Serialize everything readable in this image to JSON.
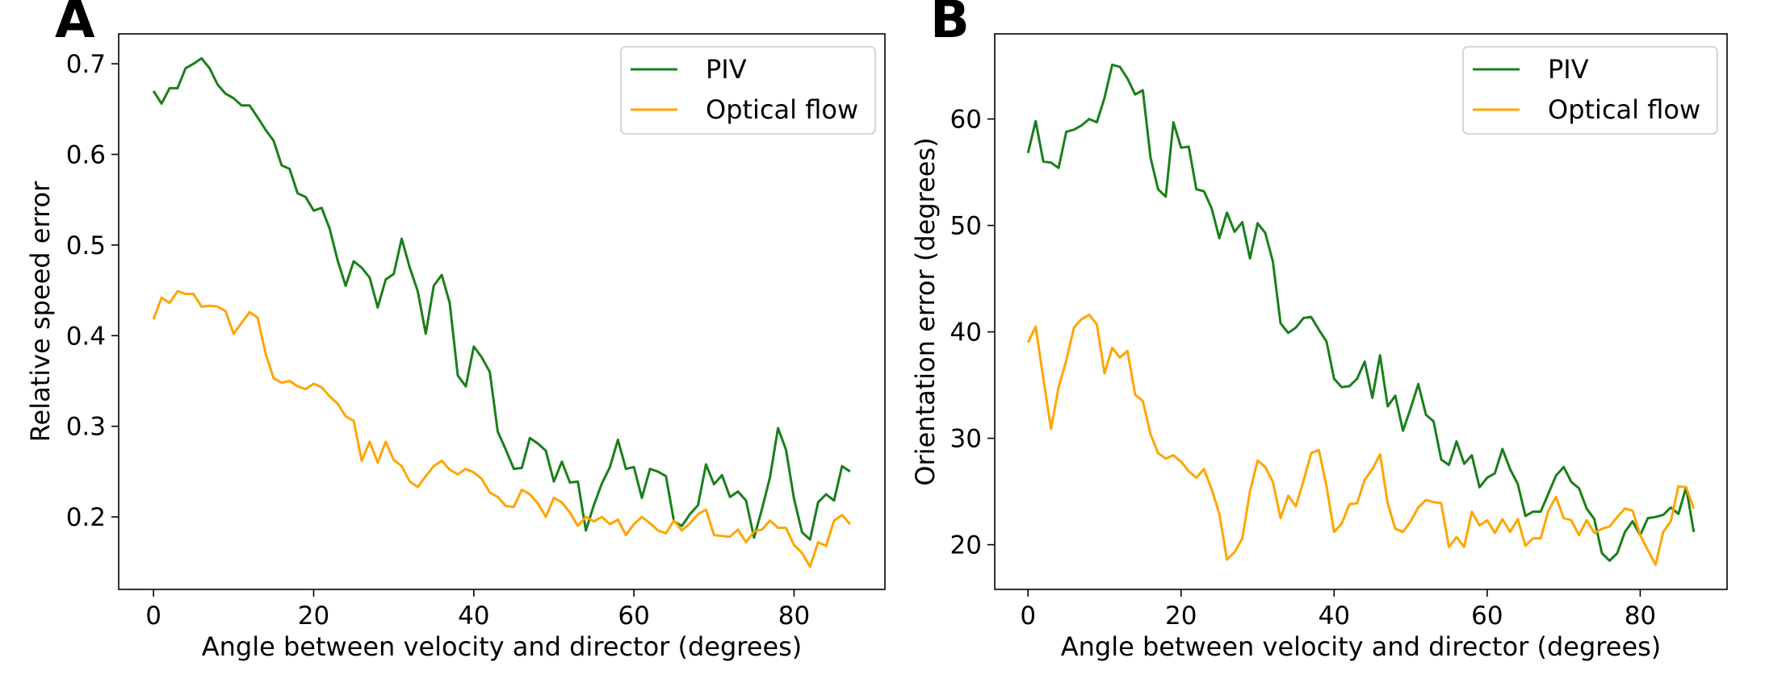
{
  "colors": {
    "piv": "#1a7f1a",
    "optical_flow": "#ffa500",
    "axes": "#000000",
    "legend_border": "#cccccc"
  },
  "chart_data": [
    {
      "type": "line",
      "panel": "A",
      "xlabel": "Angle between velocity and director (degrees)",
      "ylabel": "Relative speed error",
      "xlim": [
        -4.35,
        91.35
      ],
      "ylim": [
        0.12,
        0.733
      ],
      "xticks": [
        0,
        20,
        40,
        60,
        80
      ],
      "yticks": [
        0.2,
        0.3,
        0.4,
        0.5,
        0.6,
        0.7
      ],
      "ytick_labels": [
        "0.2",
        "0.3",
        "0.4",
        "0.5",
        "0.6",
        "0.7"
      ],
      "legend_location": "top-right",
      "x": [
        0,
        1,
        2,
        3,
        4,
        5,
        6,
        7,
        8,
        9,
        10,
        11,
        12,
        13,
        14,
        15,
        16,
        17,
        18,
        19,
        20,
        21,
        22,
        23,
        24,
        25,
        26,
        27,
        28,
        29,
        30,
        31,
        32,
        33,
        34,
        35,
        36,
        37,
        38,
        39,
        40,
        41,
        42,
        43,
        44,
        45,
        46,
        47,
        48,
        49,
        50,
        51,
        52,
        53,
        54,
        55,
        56,
        57,
        58,
        59,
        60,
        61,
        62,
        63,
        64,
        65,
        66,
        67,
        68,
        69,
        70,
        71,
        72,
        73,
        74,
        75,
        76,
        77,
        78,
        79,
        80,
        81,
        82,
        83,
        84,
        85,
        86,
        87
      ],
      "series": [
        {
          "name": "PIV",
          "color_key": "piv",
          "values": [
            0.67,
            0.656,
            0.673,
            0.673,
            0.695,
            0.7,
            0.706,
            0.695,
            0.677,
            0.667,
            0.662,
            0.654,
            0.654,
            0.641,
            0.627,
            0.615,
            0.588,
            0.584,
            0.557,
            0.553,
            0.538,
            0.541,
            0.518,
            0.483,
            0.455,
            0.482,
            0.475,
            0.464,
            0.431,
            0.462,
            0.468,
            0.507,
            0.475,
            0.449,
            0.402,
            0.455,
            0.467,
            0.436,
            0.356,
            0.344,
            0.388,
            0.376,
            0.36,
            0.294,
            0.274,
            0.253,
            0.254,
            0.287,
            0.281,
            0.273,
            0.239,
            0.261,
            0.238,
            0.239,
            0.185,
            0.213,
            0.237,
            0.255,
            0.285,
            0.253,
            0.255,
            0.221,
            0.253,
            0.25,
            0.245,
            0.195,
            0.19,
            0.203,
            0.213,
            0.258,
            0.236,
            0.246,
            0.222,
            0.228,
            0.218,
            0.177,
            0.209,
            0.244,
            0.298,
            0.274,
            0.22,
            0.183,
            0.175,
            0.216,
            0.225,
            0.218,
            0.256,
            0.25
          ]
        },
        {
          "name": "Optical flow",
          "color_key": "optical_flow",
          "values": [
            0.418,
            0.442,
            0.436,
            0.449,
            0.446,
            0.446,
            0.432,
            0.433,
            0.432,
            0.427,
            0.402,
            0.414,
            0.426,
            0.42,
            0.38,
            0.353,
            0.348,
            0.35,
            0.344,
            0.341,
            0.347,
            0.343,
            0.333,
            0.325,
            0.311,
            0.306,
            0.262,
            0.283,
            0.26,
            0.283,
            0.263,
            0.256,
            0.239,
            0.233,
            0.245,
            0.256,
            0.262,
            0.252,
            0.247,
            0.253,
            0.249,
            0.242,
            0.227,
            0.222,
            0.212,
            0.211,
            0.23,
            0.225,
            0.215,
            0.2,
            0.221,
            0.216,
            0.205,
            0.19,
            0.2,
            0.195,
            0.2,
            0.192,
            0.197,
            0.18,
            0.192,
            0.2,
            0.193,
            0.185,
            0.182,
            0.196,
            0.185,
            0.193,
            0.203,
            0.208,
            0.18,
            0.179,
            0.178,
            0.186,
            0.172,
            0.184,
            0.186,
            0.196,
            0.188,
            0.188,
            0.169,
            0.16,
            0.145,
            0.172,
            0.168,
            0.196,
            0.202,
            0.192
          ]
        }
      ]
    },
    {
      "type": "line",
      "panel": "B",
      "xlabel": "Angle between velocity and director (degrees)",
      "ylabel": "Orientation error (degrees)",
      "xlim": [
        -4.35,
        91.35
      ],
      "ylim": [
        15.8,
        68.0
      ],
      "xticks": [
        0,
        20,
        40,
        60,
        80
      ],
      "yticks": [
        20,
        30,
        40,
        50,
        60
      ],
      "ytick_labels": [
        "20",
        "30",
        "40",
        "50",
        "60"
      ],
      "legend_location": "top-right",
      "x": [
        0,
        1,
        2,
        3,
        4,
        5,
        6,
        7,
        8,
        9,
        10,
        11,
        12,
        13,
        14,
        15,
        16,
        17,
        18,
        19,
        20,
        21,
        22,
        23,
        24,
        25,
        26,
        27,
        28,
        29,
        30,
        31,
        32,
        33,
        34,
        35,
        36,
        37,
        38,
        39,
        40,
        41,
        42,
        43,
        44,
        45,
        46,
        47,
        48,
        49,
        50,
        51,
        52,
        53,
        54,
        55,
        56,
        57,
        58,
        59,
        60,
        61,
        62,
        63,
        64,
        65,
        66,
        67,
        68,
        69,
        70,
        71,
        72,
        73,
        74,
        75,
        76,
        77,
        78,
        79,
        80,
        81,
        82,
        83,
        84,
        85,
        86,
        87
      ],
      "series": [
        {
          "name": "PIV",
          "color_key": "piv",
          "values": [
            56.8,
            59.8,
            56.0,
            55.9,
            55.4,
            58.8,
            59.0,
            59.4,
            60.0,
            59.7,
            62.0,
            65.1,
            64.9,
            63.8,
            62.3,
            62.7,
            56.4,
            53.4,
            52.7,
            59.7,
            57.3,
            57.4,
            53.4,
            53.2,
            51.6,
            48.8,
            51.2,
            49.4,
            50.3,
            46.9,
            50.2,
            49.3,
            46.6,
            40.8,
            39.9,
            40.4,
            41.3,
            41.4,
            40.2,
            39.1,
            35.6,
            34.8,
            34.9,
            35.6,
            37.2,
            33.8,
            37.8,
            33.0,
            34.0,
            30.7,
            32.8,
            35.1,
            32.2,
            31.6,
            28.0,
            27.5,
            29.7,
            27.6,
            28.4,
            25.4,
            26.3,
            26.7,
            29.0,
            27.1,
            25.7,
            22.7,
            23.1,
            23.1,
            24.8,
            26.5,
            27.3,
            25.9,
            25.3,
            23.4,
            22.4,
            19.2,
            18.5,
            19.2,
            21.2,
            22.2,
            20.9,
            22.5,
            22.6,
            22.8,
            23.5,
            22.9,
            25.4,
            21.2
          ]
        },
        {
          "name": "Optical flow",
          "color_key": "optical_flow",
          "values": [
            39.0,
            40.5,
            35.6,
            30.9,
            34.8,
            37.3,
            40.4,
            41.2,
            41.6,
            40.7,
            36.1,
            38.5,
            37.6,
            38.2,
            34.1,
            33.5,
            30.4,
            28.6,
            28.1,
            28.4,
            27.8,
            26.9,
            26.3,
            27.1,
            25.2,
            22.9,
            18.6,
            19.3,
            20.6,
            25.0,
            27.9,
            27.3,
            25.9,
            22.5,
            24.6,
            23.6,
            26.0,
            28.6,
            28.9,
            25.5,
            21.2,
            22.0,
            23.8,
            23.9,
            26.1,
            27.1,
            28.5,
            23.9,
            21.5,
            21.2,
            22.2,
            23.5,
            24.2,
            24.0,
            23.9,
            19.8,
            20.7,
            19.8,
            23.1,
            21.8,
            22.3,
            21.1,
            22.4,
            21.2,
            22.4,
            19.9,
            20.6,
            20.6,
            23.2,
            24.5,
            22.5,
            22.3,
            20.9,
            22.3,
            21.1,
            21.5,
            21.7,
            22.6,
            23.4,
            23.2,
            20.9,
            19.5,
            18.1,
            21.2,
            22.2,
            25.5,
            25.4,
            23.4
          ]
        }
      ]
    }
  ]
}
